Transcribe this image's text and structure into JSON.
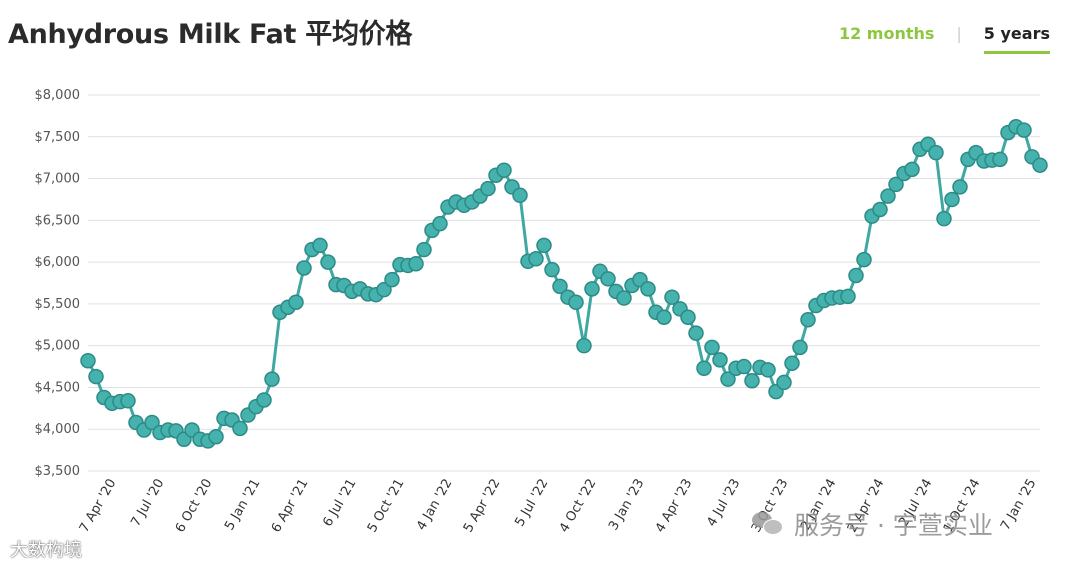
{
  "header": {
    "title": "Anhydrous Milk Fat 平均价格",
    "tab_12_months": "12 months",
    "tab_separator": "|",
    "tab_5_years": "5 years",
    "active_tab": "5 years"
  },
  "colors": {
    "line": "#40a8a4",
    "point_fill": "#45b2ad",
    "point_stroke": "#2d8a86",
    "grid": "#e0e0e0",
    "accent": "#8dc63f"
  },
  "watermarks": {
    "left": "大数构境",
    "right": "服务号 · 宇萱实业"
  },
  "chart_data": {
    "type": "line",
    "title": "Anhydrous Milk Fat 平均价格",
    "xlabel": "",
    "ylabel": "",
    "ylim": [
      3500,
      8000
    ],
    "yticks": [
      3500,
      4000,
      4500,
      5000,
      5500,
      6000,
      6500,
      7000,
      7500,
      8000
    ],
    "ytick_labels": [
      "$3,500",
      "$4,000",
      "$4,500",
      "$5,000",
      "$5,500",
      "$6,000",
      "$6,500",
      "$7,000",
      "$7,500",
      "$8,000"
    ],
    "xtick_labels": [
      "7 Apr '20",
      "7 Jul '20",
      "6 Oct '20",
      "5 Jan '21",
      "6 Apr '21",
      "6 Jul '21",
      "5 Oct '21",
      "4 Jan '22",
      "5 Apr '22",
      "5 Jul '22",
      "4 Oct '22",
      "3 Jan '23",
      "4 Apr '23",
      "4 Jul '23",
      "3 Oct '23",
      "2 Jan '24",
      "2 Apr '24",
      "2 Jul '24",
      "1 Oct '24",
      "7 Jan '25"
    ],
    "xtick_index": [
      3,
      9,
      15,
      21,
      27,
      33,
      39,
      45,
      51,
      57,
      63,
      69,
      75,
      81,
      87,
      93,
      99,
      105,
      111,
      118
    ],
    "grid": true,
    "legend": "none",
    "series": [
      {
        "values": [
          4820,
          4630,
          4380,
          4310,
          4330,
          4340,
          4080,
          3990,
          4080,
          3960,
          3990,
          3980,
          3880,
          3990,
          3880,
          3860,
          3910,
          4130,
          4110,
          4010,
          4170,
          4270,
          4350,
          4600,
          5400,
          5460,
          5520,
          5930,
          6150,
          6200,
          6000,
          5730,
          5720,
          5650,
          5680,
          5620,
          5610,
          5670,
          5790,
          5970,
          5960,
          5980,
          6150,
          6380,
          6460,
          6660,
          6720,
          6680,
          6720,
          6790,
          6880,
          7040,
          7100,
          6900,
          6800,
          6010,
          6040,
          6200,
          5910,
          5710,
          5580,
          5520,
          5000,
          5680,
          5890,
          5800,
          5650,
          5570,
          5720,
          5790,
          5680,
          5400,
          5340,
          5580,
          5440,
          5340,
          5150,
          4730,
          4980,
          4830,
          4600,
          4730,
          4750,
          4580,
          4740,
          4710,
          4450,
          4560,
          4790,
          4980,
          5310,
          5480,
          5540,
          5570,
          5580,
          5590,
          5840,
          6030,
          6550,
          6630,
          6790,
          6930,
          7060,
          7110,
          7350,
          7410,
          7310,
          6520,
          6750,
          6900,
          7230,
          7310,
          7210,
          7220,
          7230,
          7550,
          7620,
          7580,
          7260,
          7160
        ]
      }
    ]
  }
}
